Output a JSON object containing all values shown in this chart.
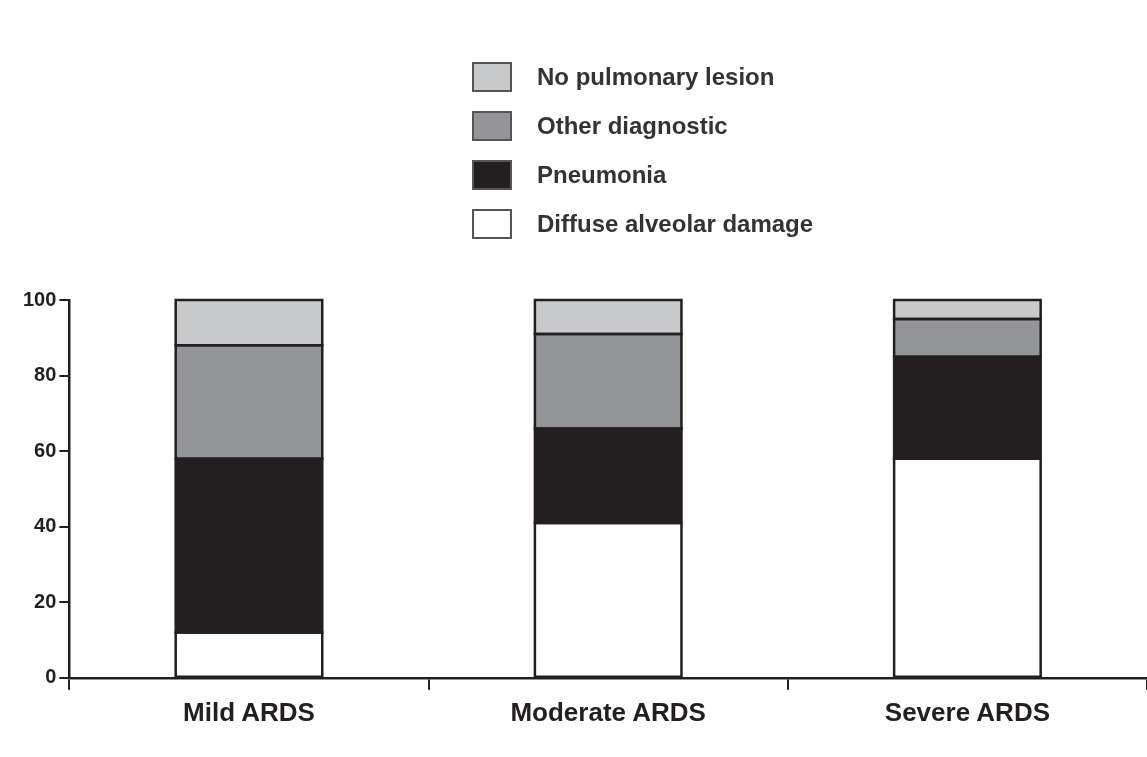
{
  "chart_data": {
    "type": "bar",
    "stacked": true,
    "categories": [
      "Mild ARDS",
      "Moderate ARDS",
      "Severe ARDS"
    ],
    "series": [
      {
        "name": "Diffuse alveolar damage",
        "color": "#ffffff",
        "values": [
          12,
          41,
          58
        ]
      },
      {
        "name": "Pneumonia",
        "color": "#231f20",
        "values": [
          46,
          25,
          27
        ]
      },
      {
        "name": "Other diagnostic",
        "color": "#939598",
        "values": [
          30,
          25,
          10
        ]
      },
      {
        "name": "No pulmonary lesion",
        "color": "#c8c9cb",
        "values": [
          12,
          9,
          5
        ]
      }
    ],
    "ylim": [
      0,
      100
    ],
    "yticks": [
      0,
      20,
      40,
      60,
      80,
      100
    ],
    "grid": false,
    "legend": "top"
  }
}
